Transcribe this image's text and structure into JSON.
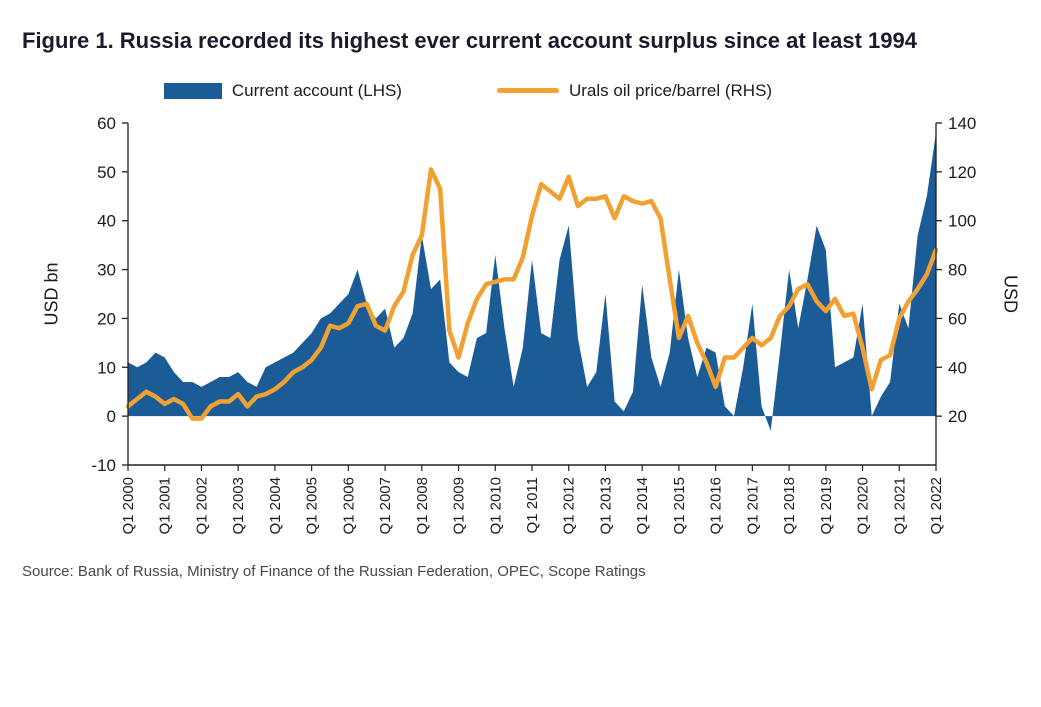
{
  "title": "Figure 1. Russia recorded its highest ever current account surplus since at least 1994",
  "legend": [
    {
      "label": "Current account (LHS)",
      "swatch": "blue-rect"
    },
    {
      "label": "Urals oil price/barrel (RHS)",
      "swatch": "orange-line"
    }
  ],
  "source": "Source: Bank of Russia, Ministry of Finance of the Russian Federation, OPEC, Scope Ratings",
  "colors": {
    "current_account": "#1B5C97",
    "oil_line": "#F0A132",
    "axis": "#222222",
    "title_text": "#1a1a2b",
    "source_text": "#484848"
  },
  "chart_data": {
    "type": "area",
    "subtype": "combo-area-line",
    "frequency": "quarterly",
    "title": "Russia current account surplus vs Urals oil price, Q1 2000 - Q1 2022",
    "ylabel_left": "USD bn",
    "ylabel_right": "USD",
    "x_tick_labels": [
      "Q1 2000",
      "Q1 2001",
      "Q1 2002",
      "Q1 2003",
      "Q1 2004",
      "Q1 2005",
      "Q1 2006",
      "Q1 2007",
      "Q1 2008",
      "Q1 2009",
      "Q1 2010",
      "Q1 2011",
      "Q1 2012",
      "Q1 2013",
      "Q1 2014",
      "Q1 2015",
      "Q1 2016",
      "Q1 2017",
      "Q1 2018",
      "Q1 2019",
      "Q1 2020",
      "Q1 2021",
      "Q1 2022"
    ],
    "left_axis": {
      "min": -10,
      "max": 60,
      "ticks": [
        60,
        50,
        40,
        30,
        20,
        10,
        0,
        -10
      ]
    },
    "right_axis": {
      "min": 20,
      "max": 140,
      "ticks": [
        140,
        120,
        100,
        80,
        60,
        40,
        20
      ],
      "maps_to_left_range": [
        0,
        60
      ]
    },
    "legend_position": "top",
    "grid": false,
    "series": [
      {
        "name": "Current account (LHS)",
        "type": "area",
        "axis": "left",
        "color": "#1B5C97",
        "values": [
          11,
          10,
          11,
          13,
          12,
          9,
          7,
          7,
          6,
          7,
          8,
          8,
          9,
          7,
          6,
          10,
          11,
          12,
          13,
          15,
          17,
          20,
          21,
          23,
          25,
          30,
          23,
          20,
          22,
          14,
          16,
          21,
          37,
          26,
          28,
          11,
          9,
          8,
          16,
          17,
          33,
          18,
          6,
          14,
          32,
          17,
          16,
          32,
          39,
          16,
          6,
          9,
          25,
          3,
          1,
          5,
          27,
          12,
          6,
          13,
          30,
          16,
          8,
          14,
          13,
          2,
          0,
          10,
          23,
          2,
          -3,
          13,
          30,
          18,
          28,
          39,
          34,
          10,
          11,
          12,
          23,
          0,
          4,
          7,
          23,
          18,
          37,
          45,
          58
        ]
      },
      {
        "name": "Urals oil price/barrel (RHS)",
        "type": "line",
        "axis": "right",
        "color": "#F0A132",
        "values": [
          24,
          27,
          30,
          28,
          25,
          27,
          25,
          19,
          19,
          24,
          26,
          26,
          29,
          24,
          28,
          29,
          31,
          34,
          38,
          40,
          43,
          48,
          57,
          56,
          58,
          65,
          66,
          57,
          55,
          65,
          71,
          86,
          94,
          121,
          113,
          55,
          44,
          58,
          68,
          74,
          75,
          76,
          76,
          85,
          102,
          115,
          112,
          109,
          118,
          106,
          109,
          109,
          110,
          101,
          110,
          108,
          107,
          108,
          101,
          76,
          52,
          61,
          50,
          42,
          32,
          44,
          44,
          48,
          52,
          49,
          52,
          61,
          65,
          72,
          74,
          67,
          63,
          68,
          61,
          62,
          48,
          31,
          43,
          45,
          60,
          67,
          72,
          78,
          88
        ]
      }
    ]
  }
}
